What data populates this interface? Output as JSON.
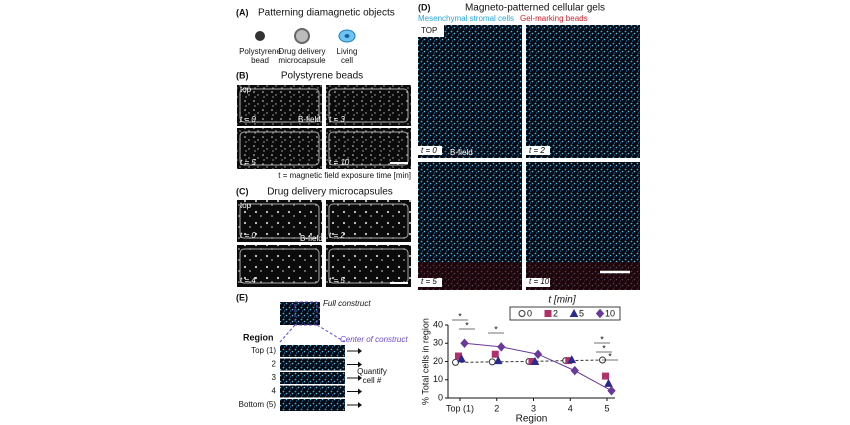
{
  "panel_a": {
    "label": "(A)",
    "title": "Patterning diamagnetic objects",
    "items": [
      [
        "Polystyrene",
        "bead"
      ],
      [
        "Drug delivery",
        "microcapsule"
      ],
      [
        "Living",
        "cell"
      ]
    ]
  },
  "panel_b": {
    "label": "(B)",
    "title": "Polystyrene beads",
    "top": "top",
    "field": "B-field",
    "times": [
      "t = 0",
      "t = 3",
      "t = 5",
      "t = 10"
    ],
    "caption": "t = magnetic field exposure time [min]"
  },
  "panel_c": {
    "label": "(C)",
    "title": "Drug delivery microcapsules",
    "top": "top",
    "field": "B-field",
    "times": [
      "t = 0",
      "t = 2",
      "t = 4",
      "t = 5"
    ]
  },
  "panel_d": {
    "label": "(D)",
    "title": "Magneto-patterned cellular gels",
    "legend": [
      "Mesenchymal stromal cells",
      "Gel-marking beads"
    ],
    "top": "TOP",
    "field": "B-field",
    "times": [
      "t = 0",
      "t = 2",
      "t = 5",
      "t = 10"
    ]
  },
  "panel_e": {
    "label": "(E)",
    "full": "Full construct",
    "region": "Region",
    "center": "Center of construct",
    "rows": [
      "Top (1)",
      "2",
      "3",
      "4",
      "Bottom (5)"
    ],
    "quantify": [
      "Quantify",
      "cell #"
    ]
  },
  "chart_data": {
    "type": "line",
    "x_label": "Region",
    "y_label": "% Total cells in region",
    "legend_title": "t [min]",
    "categories": [
      "Top (1)",
      "2",
      "3",
      "4",
      "5"
    ],
    "ylim": [
      0,
      40
    ],
    "yticks": [
      0,
      10,
      20,
      30,
      40
    ],
    "series": [
      {
        "name": "0",
        "color": "#333333",
        "marker": "circle",
        "line": "dashed",
        "values": [
          19.5,
          19.8,
          20,
          20.5,
          20.8
        ]
      },
      {
        "name": "2",
        "color": "#b0306a",
        "marker": "square",
        "line": "none",
        "values": [
          23,
          24,
          20,
          20.5,
          12
        ]
      },
      {
        "name": "5",
        "color": "#2a2a8c",
        "marker": "triangle",
        "line": "none",
        "values": [
          21.5,
          20.5,
          20,
          21,
          8
        ]
      },
      {
        "name": "10",
        "color": "#6a3a9a",
        "marker": "diamond",
        "line": "solid",
        "values": [
          30,
          28,
          24,
          15,
          4
        ]
      }
    ],
    "annotations": [
      "*",
      "*",
      "*",
      "*",
      "*",
      "*"
    ]
  }
}
